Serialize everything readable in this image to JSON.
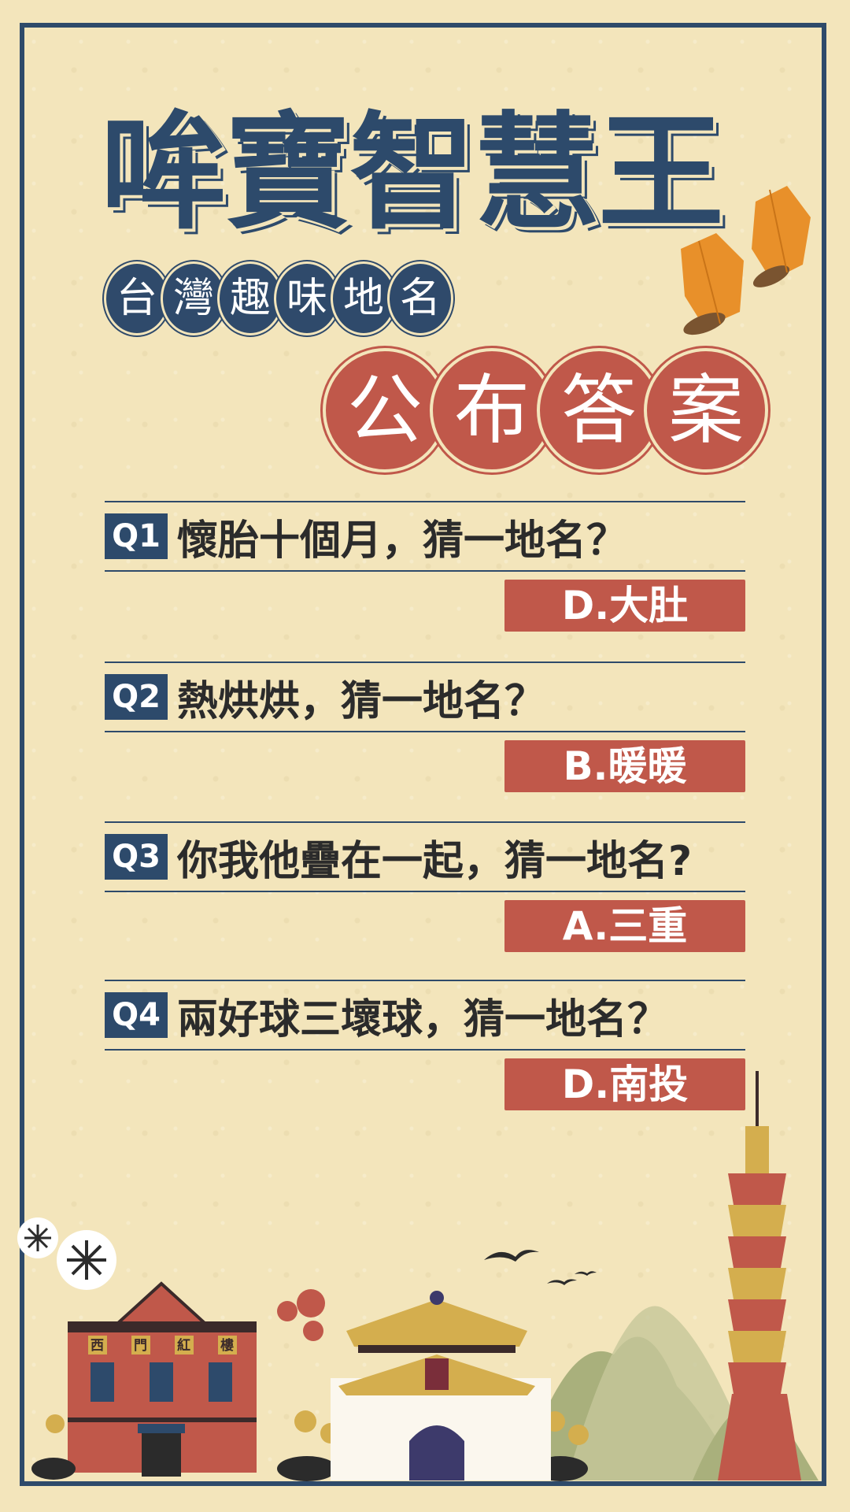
{
  "title": "哞寶智慧王",
  "subtitle_chars": [
    "台",
    "灣",
    "趣",
    "味",
    "地",
    "名"
  ],
  "reveal_chars": [
    "公",
    "布",
    "答",
    "案"
  ],
  "questions": [
    {
      "tag": "Q1",
      "text": "懷胎十個月，猜一地名？",
      "answer": "D.大肚"
    },
    {
      "tag": "Q2",
      "text": "熱烘烘，猜一地名？",
      "answer": "B.暖暖"
    },
    {
      "tag": "Q3",
      "text": "你我他疊在一起，猜一地名?",
      "answer": "A.三重"
    },
    {
      "tag": "Q4",
      "text": "兩好球三壞球，猜一地名？",
      "answer": "D.南投"
    }
  ],
  "illustration": {
    "red_house_sign": [
      "西",
      "門",
      "紅",
      "樓"
    ]
  },
  "colors": {
    "background": "#f3e5bb",
    "navy": "#2d4a6b",
    "red": "#c0584a",
    "orange_lantern": "#e8902a",
    "gold": "#d4ae4e"
  }
}
